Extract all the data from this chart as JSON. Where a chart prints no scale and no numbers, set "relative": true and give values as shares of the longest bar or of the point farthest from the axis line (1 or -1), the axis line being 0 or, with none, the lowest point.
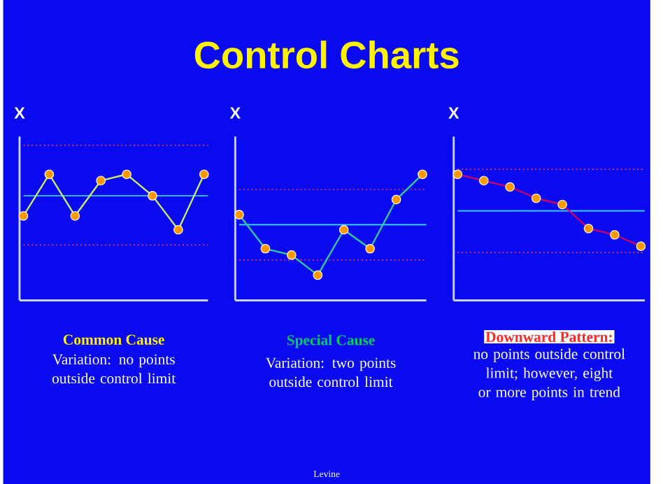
{
  "chart_data": [
    {
      "type": "line",
      "title": "Common Cause",
      "subtitle": "Variation: no points outside control limit",
      "ylabel": "X",
      "relative": true,
      "categories": [
        null,
        null,
        null,
        null,
        null,
        null,
        null,
        null
      ],
      "marker": "circle",
      "line_style": "solid",
      "series": [
        {
          "color": "#ccee66",
          "values": [
            0.67,
            1,
            0.67,
            0.95,
            1,
            0.83,
            0.56,
            1
          ]
        }
      ],
      "ref_lines": [
        {
          "axis": "y",
          "value": 0.83,
          "color": "#33ccff",
          "line_style": "solid"
        },
        {
          "axis": "y",
          "value": 1.23,
          "color": "#cc3366",
          "line_style": "dotted"
        },
        {
          "axis": "y",
          "value": 0.44,
          "color": "#cc3366",
          "line_style": "dotted"
        }
      ]
    },
    {
      "type": "line",
      "title": "Special Cause",
      "subtitle": "Variation: two points outside control limit",
      "ylabel": "X",
      "relative": true,
      "categories": [
        null,
        null,
        null,
        null,
        null,
        null,
        null,
        null
      ],
      "marker": "circle",
      "line_style": "solid",
      "series": [
        {
          "color": "#33cc99",
          "values": [
            0.68,
            0.41,
            0.36,
            0.2,
            0.56,
            0.41,
            0.8,
            1
          ]
        }
      ],
      "ref_lines": [
        {
          "axis": "y",
          "value": 0.6,
          "color": "#33ccff",
          "line_style": "solid"
        },
        {
          "axis": "y",
          "value": 0.88,
          "color": "#cc3366",
          "line_style": "dotted"
        },
        {
          "axis": "y",
          "value": 0.32,
          "color": "#cc3366",
          "line_style": "dotted"
        }
      ]
    },
    {
      "type": "line",
      "title": "Downward Pattern:",
      "subtitle": "no points outside control limit; however, eight or more points in trend",
      "ylabel": "X",
      "relative": true,
      "categories": [
        null,
        null,
        null,
        null,
        null,
        null,
        null,
        null
      ],
      "marker": "circle",
      "line_style": "solid",
      "series": [
        {
          "color": "#cc0066",
          "values": [
            1,
            0.95,
            0.9,
            0.81,
            0.76,
            0.57,
            0.52,
            0.43
          ]
        }
      ],
      "ref_lines": [
        {
          "axis": "y",
          "value": 0.71,
          "color": "#33ccff",
          "line_style": "solid"
        },
        {
          "axis": "y",
          "value": 1.04,
          "color": "#cc3366",
          "line_style": "dotted"
        },
        {
          "axis": "y",
          "value": 0.38,
          "color": "#cc3366",
          "line_style": "dotted"
        }
      ]
    },
    {
      "type": "other",
      "title": "Control Charts",
      "annotations": [
        "Levine"
      ]
    }
  ]
}
